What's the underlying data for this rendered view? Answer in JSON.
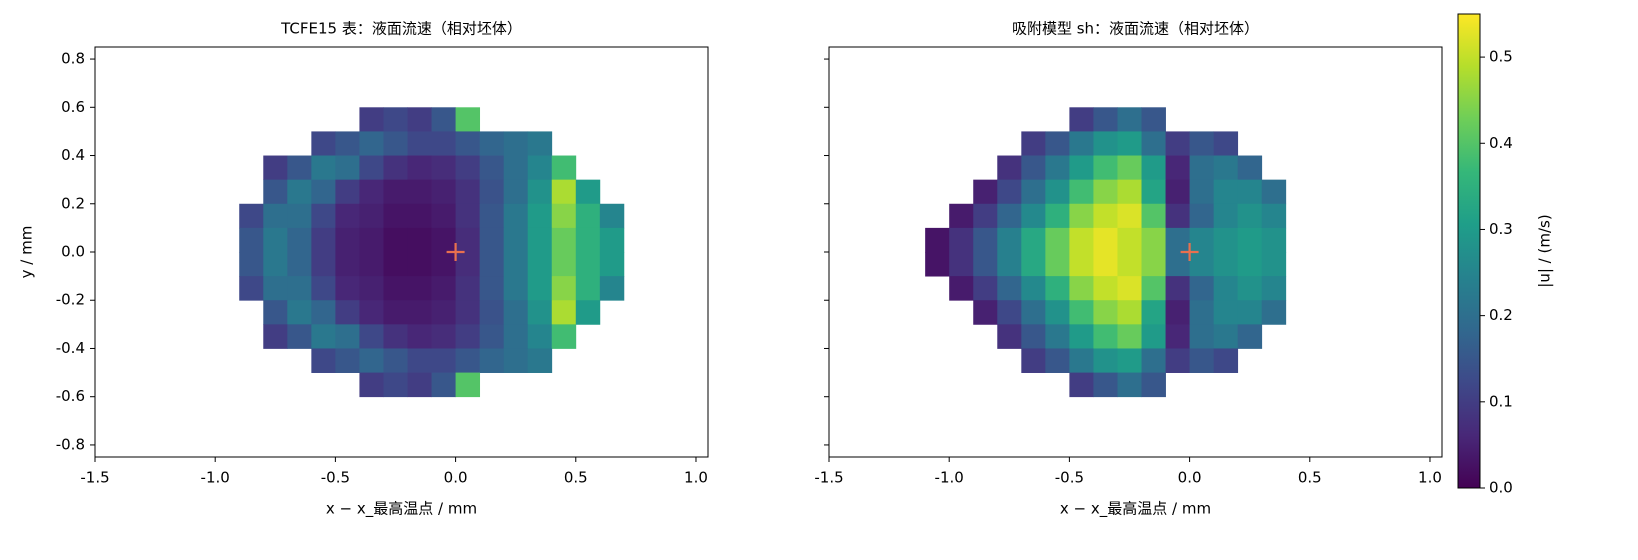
{
  "chart_data": [
    {
      "type": "heatmap",
      "title": "TCFE15 表：液面流速（相对坯体）",
      "xlabel": "x − x_最高温点 / mm",
      "ylabel": "y / mm",
      "xlim": [
        -1.5,
        1.05
      ],
      "ylim": [
        -0.85,
        0.85
      ],
      "xticks": [
        -1.5,
        {
          "value": -1.0,
          "label": "-1.0"
        },
        -0.5,
        {
          "value": 0,
          "label": "0.0"
        },
        0.5,
        {
          "value": 1.0,
          "label": "1.0"
        }
      ],
      "yticks": [
        -0.8,
        -0.6,
        -0.4,
        -0.2,
        {
          "value": 0,
          "label": "0.0"
        },
        0.2,
        0.4,
        0.6,
        0.8
      ],
      "marker": {
        "x": 0,
        "y": 0,
        "color": "#e8704f"
      },
      "x": [
        -0.85,
        -0.75,
        -0.65,
        -0.55,
        -0.45,
        -0.35,
        -0.25,
        -0.15,
        -0.05,
        0.05,
        0.15,
        0.25,
        0.35,
        0.45,
        0.55,
        0.65
      ],
      "y": [
        0.55,
        0.45,
        0.35,
        0.25,
        0.15,
        0.05,
        -0.05,
        -0.15,
        -0.25,
        -0.35,
        -0.45,
        -0.55
      ],
      "z": [
        [
          null,
          null,
          null,
          null,
          null,
          0.1,
          0.12,
          0.1,
          0.15,
          0.4,
          null,
          null,
          null,
          null,
          null,
          null
        ],
        [
          null,
          null,
          null,
          0.12,
          0.15,
          0.18,
          0.15,
          0.12,
          0.12,
          0.15,
          0.18,
          0.2,
          0.22,
          null,
          null,
          null
        ],
        [
          null,
          0.1,
          0.15,
          0.22,
          0.2,
          0.12,
          0.08,
          0.06,
          0.07,
          0.1,
          0.15,
          0.2,
          0.25,
          0.38,
          null,
          null
        ],
        [
          null,
          0.15,
          0.22,
          0.18,
          0.1,
          0.06,
          0.04,
          0.04,
          0.05,
          0.08,
          0.14,
          0.2,
          0.28,
          0.48,
          0.3,
          null
        ],
        [
          0.12,
          0.2,
          0.2,
          0.12,
          0.06,
          0.05,
          0.03,
          0.03,
          0.04,
          0.08,
          0.15,
          0.22,
          0.3,
          0.45,
          0.35,
          0.25
        ],
        [
          0.15,
          0.22,
          0.18,
          0.1,
          0.05,
          0.04,
          0.02,
          0.02,
          0.03,
          0.07,
          0.15,
          0.22,
          0.3,
          0.42,
          0.35,
          0.3
        ],
        [
          0.15,
          0.22,
          0.18,
          0.1,
          0.05,
          0.04,
          0.02,
          0.02,
          0.03,
          0.07,
          0.15,
          0.22,
          0.3,
          0.42,
          0.35,
          0.3
        ],
        [
          0.12,
          0.2,
          0.2,
          0.12,
          0.06,
          0.05,
          0.03,
          0.03,
          0.04,
          0.08,
          0.15,
          0.22,
          0.3,
          0.45,
          0.35,
          0.25
        ],
        [
          null,
          0.15,
          0.22,
          0.18,
          0.1,
          0.06,
          0.04,
          0.04,
          0.05,
          0.08,
          0.14,
          0.2,
          0.28,
          0.48,
          0.3,
          null
        ],
        [
          null,
          0.1,
          0.15,
          0.22,
          0.2,
          0.12,
          0.08,
          0.06,
          0.07,
          0.1,
          0.15,
          0.2,
          0.25,
          0.38,
          null,
          null
        ],
        [
          null,
          null,
          null,
          0.12,
          0.15,
          0.18,
          0.15,
          0.12,
          0.12,
          0.15,
          0.18,
          0.2,
          0.22,
          null,
          null,
          null
        ],
        [
          null,
          null,
          null,
          null,
          null,
          0.1,
          0.12,
          0.1,
          0.15,
          0.4,
          null,
          null,
          null,
          null,
          null,
          null
        ]
      ]
    },
    {
      "type": "heatmap",
      "title": "吸附模型 sh：液面流速（相对坯体）",
      "xlabel": "x − x_最高温点 / mm",
      "xlim": [
        -1.5,
        1.05
      ],
      "ylim": [
        -0.85,
        0.85
      ],
      "xticks": [
        -1.5,
        {
          "value": -1.0,
          "label": "-1.0"
        },
        -0.5,
        {
          "value": 0,
          "label": "0.0"
        },
        0.5,
        {
          "value": 1.0,
          "label": "1.0"
        }
      ],
      "yticks": [
        -0.8,
        -0.6,
        -0.4,
        -0.2,
        0,
        0.2,
        0.4,
        0.6,
        0.8
      ],
      "marker": {
        "x": 0,
        "y": 0,
        "color": "#e8704f"
      },
      "x": [
        -1.05,
        -0.95,
        -0.85,
        -0.75,
        -0.65,
        -0.55,
        -0.45,
        -0.35,
        -0.25,
        -0.15,
        -0.05,
        0.05,
        0.15,
        0.25,
        0.35
      ],
      "y": [
        0.55,
        0.45,
        0.35,
        0.25,
        0.15,
        0.05,
        -0.05,
        -0.15,
        -0.25,
        -0.35,
        -0.45,
        -0.55
      ],
      "z": [
        [
          null,
          null,
          null,
          null,
          null,
          null,
          0.1,
          0.15,
          0.2,
          0.15,
          null,
          null,
          null,
          null,
          null
        ],
        [
          null,
          null,
          null,
          null,
          0.1,
          0.15,
          0.22,
          0.28,
          0.3,
          0.2,
          0.1,
          0.15,
          0.12,
          null,
          null
        ],
        [
          null,
          null,
          null,
          0.08,
          0.15,
          0.22,
          0.3,
          0.38,
          0.42,
          0.3,
          0.06,
          0.2,
          0.22,
          0.18,
          null
        ],
        [
          null,
          null,
          0.05,
          0.12,
          0.2,
          0.28,
          0.38,
          0.45,
          0.48,
          0.32,
          0.05,
          0.2,
          0.25,
          0.25,
          0.2
        ],
        [
          null,
          0.04,
          0.1,
          0.18,
          0.26,
          0.35,
          0.45,
          0.5,
          0.52,
          0.4,
          0.08,
          0.18,
          0.25,
          0.28,
          0.25
        ],
        [
          0.03,
          0.08,
          0.15,
          0.24,
          0.33,
          0.42,
          0.5,
          0.53,
          0.5,
          0.45,
          0.2,
          0.25,
          0.28,
          0.3,
          0.28
        ],
        [
          0.03,
          0.08,
          0.15,
          0.24,
          0.33,
          0.42,
          0.5,
          0.53,
          0.5,
          0.45,
          0.2,
          0.25,
          0.28,
          0.3,
          0.28
        ],
        [
          null,
          0.04,
          0.1,
          0.18,
          0.26,
          0.35,
          0.45,
          0.5,
          0.52,
          0.4,
          0.08,
          0.18,
          0.25,
          0.28,
          0.25
        ],
        [
          null,
          null,
          0.05,
          0.12,
          0.2,
          0.28,
          0.38,
          0.45,
          0.48,
          0.32,
          0.05,
          0.2,
          0.25,
          0.25,
          0.2
        ],
        [
          null,
          null,
          null,
          0.08,
          0.15,
          0.22,
          0.3,
          0.38,
          0.42,
          0.3,
          0.06,
          0.2,
          0.22,
          0.18,
          null
        ],
        [
          null,
          null,
          null,
          null,
          0.1,
          0.15,
          0.22,
          0.28,
          0.3,
          0.2,
          0.1,
          0.15,
          0.12,
          null,
          null
        ],
        [
          null,
          null,
          null,
          null,
          null,
          null,
          0.1,
          0.15,
          0.2,
          0.15,
          null,
          null,
          null,
          null,
          null
        ]
      ]
    }
  ],
  "colorbar": {
    "label": "|u| / (m/s)",
    "colormap": "viridis",
    "clim": [
      0,
      0.55
    ],
    "ticks": [
      {
        "value": 0,
        "label": "0.0"
      },
      0.1,
      0.2,
      0.3,
      0.4,
      0.5
    ]
  }
}
